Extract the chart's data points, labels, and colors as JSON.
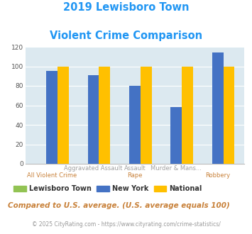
{
  "title_line1": "2019 Lewisboro Town",
  "title_line2": "Violent Crime Comparison",
  "top_labels": [
    "",
    "Aggravated Assault",
    "Assault",
    "Murder & Mans...",
    ""
  ],
  "bot_labels": [
    "All Violent Crime",
    "",
    "Rape",
    "",
    "Robbery"
  ],
  "lewisboro": [
    0,
    0,
    0,
    0,
    0
  ],
  "new_york": [
    95,
    91,
    80,
    58,
    114
  ],
  "national": [
    100,
    100,
    100,
    100,
    100
  ],
  "ylim": [
    0,
    120
  ],
  "yticks": [
    0,
    20,
    40,
    60,
    80,
    100,
    120
  ],
  "colors": {
    "lewisboro": "#92c353",
    "new_york": "#4472c4",
    "national": "#ffc000"
  },
  "bg_color": "#dce9f0",
  "title_color": "#2196f3",
  "top_label_color": "#a0a0a0",
  "bot_label_color": "#c8813a",
  "footer_note": "Compared to U.S. average. (U.S. average equals 100)",
  "footer_copy": "© 2025 CityRating.com - https://www.cityrating.com/crime-statistics/",
  "legend_labels": [
    "Lewisboro Town",
    "New York",
    "National"
  ]
}
